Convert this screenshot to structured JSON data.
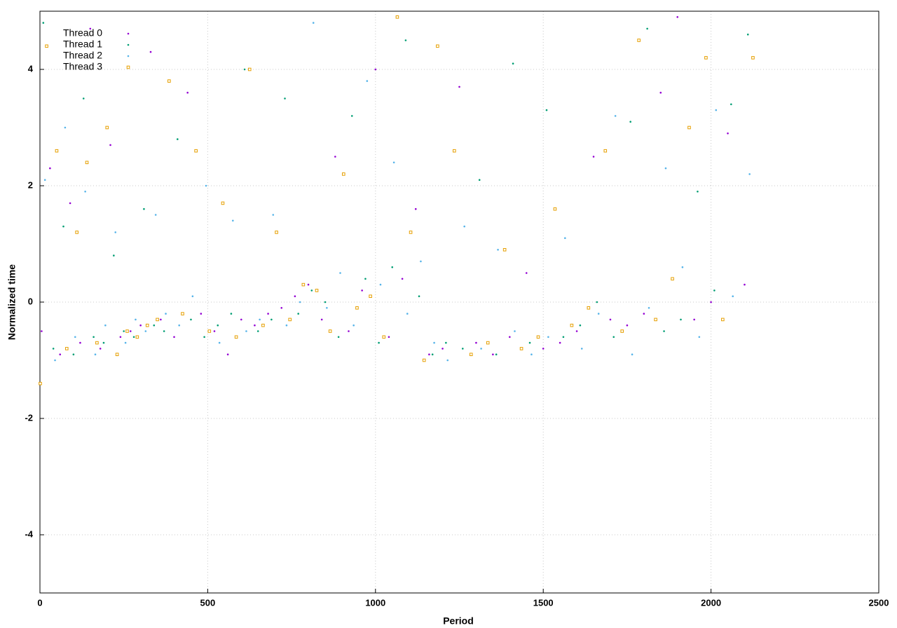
{
  "chart_data": {
    "type": "scatter",
    "xlabel": "Period",
    "ylabel": "Normalized time",
    "xlim": [
      0,
      2500
    ],
    "ylim": [
      -5,
      5
    ],
    "xticks": [
      0,
      500,
      1000,
      1500,
      2000,
      2500
    ],
    "yticks": [
      -4,
      -2,
      0,
      2,
      4
    ],
    "grid": true,
    "legend": "top-left",
    "series": [
      {
        "name": "Thread 0",
        "color": "#9400d3",
        "marker": "dot",
        "x": [
          5,
          30,
          60,
          90,
          120,
          150,
          180,
          210,
          240,
          270,
          300,
          330,
          360,
          400,
          440,
          480,
          520,
          560,
          600,
          640,
          680,
          720,
          760,
          800,
          840,
          880,
          920,
          960,
          1000,
          1040,
          1080,
          1120,
          1160,
          1200,
          1250,
          1300,
          1350,
          1400,
          1450,
          1500,
          1550,
          1600,
          1650,
          1700,
          1750,
          1800,
          1850,
          1900,
          1950,
          2000,
          2050,
          2100
        ],
        "values": [
          -0.5,
          2.3,
          -0.9,
          1.7,
          -0.7,
          4.7,
          -0.8,
          2.7,
          -0.6,
          -0.5,
          -0.4,
          4.3,
          -0.3,
          -0.6,
          3.6,
          -0.2,
          -0.5,
          -0.9,
          -0.3,
          -0.4,
          -0.2,
          -0.1,
          0.1,
          0.3,
          -0.3,
          2.5,
          -0.5,
          0.2,
          4.0,
          -0.6,
          0.4,
          1.6,
          -0.9,
          -0.8,
          3.7,
          -0.7,
          -0.9,
          -0.6,
          0.5,
          -0.8,
          -0.7,
          -0.5,
          2.5,
          -0.3,
          -0.4,
          -0.2,
          3.6,
          4.9,
          -0.3,
          0.0,
          2.9,
          0.3
        ]
      },
      {
        "name": "Thread 1",
        "color": "#009e73",
        "marker": "dot",
        "x": [
          10,
          40,
          70,
          100,
          130,
          160,
          190,
          220,
          250,
          280,
          310,
          340,
          370,
          410,
          450,
          490,
          530,
          570,
          610,
          650,
          690,
          730,
          770,
          810,
          850,
          890,
          930,
          970,
          1010,
          1050,
          1090,
          1130,
          1170,
          1210,
          1260,
          1310,
          1360,
          1410,
          1460,
          1510,
          1560,
          1610,
          1660,
          1710,
          1760,
          1810,
          1860,
          1910,
          1960,
          2010,
          2060,
          2110
        ],
        "values": [
          4.8,
          -0.8,
          1.3,
          -0.9,
          3.5,
          -0.6,
          -0.7,
          0.8,
          -0.5,
          -0.6,
          1.6,
          -0.4,
          -0.5,
          2.8,
          -0.3,
          -0.6,
          -0.4,
          -0.2,
          4.0,
          -0.5,
          -0.3,
          3.5,
          -0.2,
          0.2,
          0.0,
          -0.6,
          3.2,
          0.4,
          -0.7,
          0.6,
          4.5,
          0.1,
          -0.9,
          -0.7,
          -0.8,
          2.1,
          -0.9,
          4.1,
          -0.7,
          3.3,
          -0.6,
          -0.4,
          0.0,
          -0.6,
          3.1,
          4.7,
          -0.5,
          -0.3,
          1.9,
          0.2,
          3.4,
          4.6
        ]
      },
      {
        "name": "Thread 2",
        "color": "#56b4e9",
        "marker": "dot",
        "x": [
          15,
          45,
          75,
          105,
          135,
          165,
          195,
          225,
          255,
          285,
          315,
          345,
          375,
          415,
          455,
          495,
          535,
          575,
          615,
          655,
          695,
          735,
          775,
          815,
          855,
          895,
          935,
          975,
          1015,
          1055,
          1095,
          1135,
          1175,
          1215,
          1265,
          1315,
          1365,
          1415,
          1465,
          1515,
          1565,
          1615,
          1665,
          1715,
          1765,
          1815,
          1865,
          1915,
          1965,
          2015,
          2065,
          2115
        ],
        "values": [
          2.1,
          -1.0,
          3.0,
          -0.6,
          1.9,
          -0.9,
          -0.4,
          1.2,
          -0.7,
          -0.3,
          -0.5,
          1.5,
          -0.2,
          -0.4,
          0.1,
          2.0,
          -0.7,
          1.4,
          -0.5,
          -0.3,
          1.5,
          -0.4,
          0.0,
          4.8,
          -0.1,
          0.5,
          -0.4,
          3.8,
          0.3,
          2.4,
          -0.2,
          0.7,
          -0.7,
          -1.0,
          1.3,
          -0.8,
          0.9,
          -0.5,
          -0.9,
          -0.6,
          1.1,
          -0.8,
          -0.2,
          3.2,
          -0.9,
          -0.1,
          2.3,
          0.6,
          -0.6,
          3.3,
          0.1,
          2.2
        ]
      },
      {
        "name": "Thread 3",
        "color": "#e69f00",
        "marker": "square",
        "x": [
          1,
          20,
          50,
          80,
          110,
          140,
          170,
          200,
          230,
          260,
          290,
          320,
          350,
          385,
          425,
          465,
          505,
          545,
          585,
          625,
          665,
          705,
          745,
          785,
          825,
          865,
          905,
          945,
          985,
          1025,
          1065,
          1105,
          1145,
          1185,
          1235,
          1285,
          1335,
          1385,
          1435,
          1485,
          1535,
          1585,
          1635,
          1685,
          1735,
          1785,
          1835,
          1885,
          1935,
          1985,
          2035,
          2125
        ],
        "values": [
          -1.4,
          4.4,
          2.6,
          -0.8,
          1.2,
          2.4,
          -0.7,
          3.0,
          -0.9,
          -0.5,
          -0.6,
          -0.4,
          -0.3,
          3.8,
          -0.2,
          2.6,
          -0.5,
          1.7,
          -0.6,
          4.0,
          -0.4,
          1.2,
          -0.3,
          0.3,
          0.2,
          -0.5,
          2.2,
          -0.1,
          0.1,
          -0.6,
          4.9,
          1.2,
          -1.0,
          4.4,
          2.6,
          -0.9,
          -0.7,
          0.9,
          -0.8,
          -0.6,
          1.6,
          -0.4,
          -0.1,
          2.6,
          -0.5,
          4.5,
          -0.3,
          0.4,
          3.0,
          4.2,
          -0.3,
          4.2
        ]
      }
    ]
  }
}
